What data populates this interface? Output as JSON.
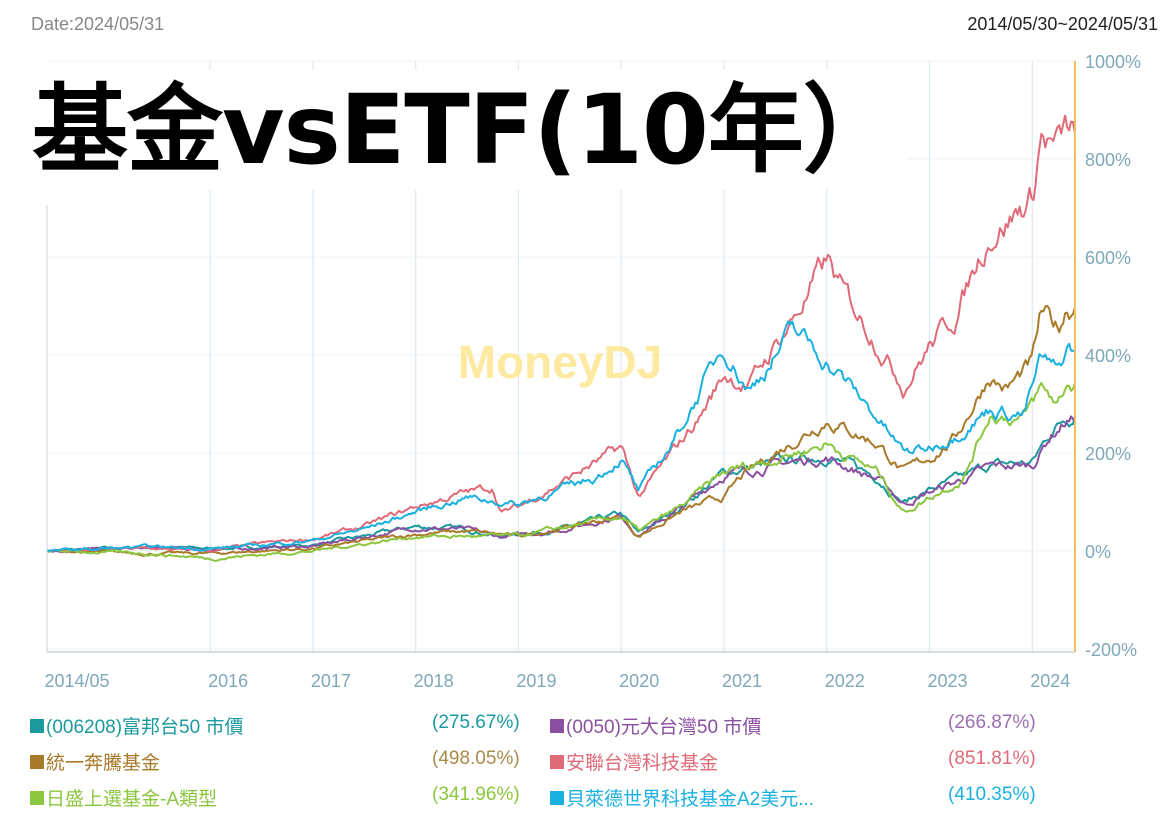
{
  "header": {
    "date": "Date:2024/05/31",
    "range": "2014/05/30~2024/05/31"
  },
  "title": "基金vsETF(10年）",
  "watermark": "MoneyDJ",
  "chart_data": {
    "type": "line",
    "title": "基金vsETF(10年）",
    "x_ticks": [
      "2014/05",
      "2016",
      "2017",
      "2018",
      "2019",
      "2020",
      "2021",
      "2022",
      "2023",
      "2024"
    ],
    "y_ticks": [
      "1000%",
      "800%",
      "600%",
      "400%",
      "200%",
      "0%",
      "-200%"
    ],
    "ylim": [
      -200,
      1000
    ],
    "xlim": [
      "2014/05/30",
      "2024/05/31"
    ],
    "y_axis_position": "right",
    "grid": true,
    "legend_position": "bottom",
    "series": [
      {
        "name": "(006208)富邦台50 市價",
        "return": "(275.67%)",
        "color": "#1a9a9f",
        "points": [
          [
            "2014/06",
            0
          ],
          [
            "2015/06",
            8
          ],
          [
            "2016/01",
            5
          ],
          [
            "2016/07",
            8
          ],
          [
            "2017/01",
            12
          ],
          [
            "2017/07",
            30
          ],
          [
            "2018/01",
            50
          ],
          [
            "2018/07",
            45
          ],
          [
            "2018/11",
            30
          ],
          [
            "2019/06",
            45
          ],
          [
            "2020/01",
            75
          ],
          [
            "2020/03",
            35
          ],
          [
            "2020/08",
            90
          ],
          [
            "2021/01",
            160
          ],
          [
            "2021/07",
            180
          ],
          [
            "2022/01",
            195
          ],
          [
            "2022/07",
            150
          ],
          [
            "2022/10",
            100
          ],
          [
            "2023/01",
            125
          ],
          [
            "2023/05",
            150
          ],
          [
            "2023/08",
            175
          ],
          [
            "2024/01",
            180
          ],
          [
            "2024/03",
            240
          ],
          [
            "2024/05",
            276
          ]
        ]
      },
      {
        "name": "(0050)元大台灣50 市價",
        "return": "(266.87%)",
        "color": "#8a4fa0",
        "points": [
          [
            "2014/06",
            0
          ],
          [
            "2015/06",
            6
          ],
          [
            "2016/01",
            3
          ],
          [
            "2016/07",
            6
          ],
          [
            "2017/01",
            10
          ],
          [
            "2017/07",
            28
          ],
          [
            "2018/01",
            48
          ],
          [
            "2018/07",
            43
          ],
          [
            "2018/11",
            28
          ],
          [
            "2019/06",
            43
          ],
          [
            "2020/01",
            72
          ],
          [
            "2020/03",
            33
          ],
          [
            "2020/08",
            87
          ],
          [
            "2021/01",
            156
          ],
          [
            "2021/07",
            176
          ],
          [
            "2022/01",
            190
          ],
          [
            "2022/07",
            146
          ],
          [
            "2022/10",
            96
          ],
          [
            "2023/01",
            120
          ],
          [
            "2023/05",
            146
          ],
          [
            "2023/08",
            170
          ],
          [
            "2024/01",
            175
          ],
          [
            "2024/03",
            233
          ],
          [
            "2024/05",
            267
          ]
        ]
      },
      {
        "name": "統一奔騰基金",
        "return": "(498.05%)",
        "color": "#a87a2a",
        "points": [
          [
            "2014/06",
            0
          ],
          [
            "2015/06",
            -5
          ],
          [
            "2016/01",
            -5
          ],
          [
            "2017/01",
            5
          ],
          [
            "2018/01",
            35
          ],
          [
            "2018/07",
            40
          ],
          [
            "2019/01",
            30
          ],
          [
            "2019/07",
            50
          ],
          [
            "2020/01",
            70
          ],
          [
            "2020/03",
            30
          ],
          [
            "2020/08",
            80
          ],
          [
            "2021/01",
            110
          ],
          [
            "2021/03",
            150
          ],
          [
            "2021/07",
            200
          ],
          [
            "2022/01",
            270
          ],
          [
            "2022/07",
            220
          ],
          [
            "2022/10",
            160
          ],
          [
            "2023/01",
            190
          ],
          [
            "2023/04",
            230
          ],
          [
            "2023/08",
            360
          ],
          [
            "2023/10",
            330
          ],
          [
            "2024/01",
            380
          ],
          [
            "2024/02",
            480
          ],
          [
            "2024/04",
            450
          ],
          [
            "2024/05",
            498
          ]
        ]
      },
      {
        "name": "安聯台灣科技基金",
        "return": "(851.81%)",
        "color": "#e06a78",
        "points": [
          [
            "2014/06",
            0
          ],
          [
            "2015/06",
            5
          ],
          [
            "2016/01",
            0
          ],
          [
            "2016/07",
            15
          ],
          [
            "2017/01",
            25
          ],
          [
            "2017/07",
            50
          ],
          [
            "2018/01",
            90
          ],
          [
            "2018/07",
            120
          ],
          [
            "2018/10",
            130
          ],
          [
            "2018/11",
            80
          ],
          [
            "2019/01",
            90
          ],
          [
            "2019/07",
            150
          ],
          [
            "2019/10",
            180
          ],
          [
            "2020/01",
            210
          ],
          [
            "2020/03",
            110
          ],
          [
            "2020/07",
            200
          ],
          [
            "2020/10",
            270
          ],
          [
            "2021/01",
            360
          ],
          [
            "2021/04",
            340
          ],
          [
            "2021/07",
            420
          ],
          [
            "2021/10",
            500
          ],
          [
            "2022/01",
            590
          ],
          [
            "2022/03",
            520
          ],
          [
            "2022/07",
            430
          ],
          [
            "2022/10",
            340
          ],
          [
            "2023/01",
            420
          ],
          [
            "2023/04",
            480
          ],
          [
            "2023/08",
            650
          ],
          [
            "2023/11",
            690
          ],
          [
            "2024/01",
            720
          ],
          [
            "2024/02",
            850
          ],
          [
            "2024/04",
            820
          ],
          [
            "2024/05",
            852
          ]
        ]
      },
      {
        "name": "日盛上選基金-A類型",
        "return": "(341.96%)",
        "color": "#8cc63f",
        "points": [
          [
            "2014/06",
            0
          ],
          [
            "2015/06",
            -5
          ],
          [
            "2016/01",
            -15
          ],
          [
            "2017/01",
            0
          ],
          [
            "2018/01",
            30
          ],
          [
            "2019/01",
            30
          ],
          [
            "2020/01",
            70
          ],
          [
            "2020/03",
            40
          ],
          [
            "2020/08",
            90
          ],
          [
            "2021/01",
            160
          ],
          [
            "2021/07",
            190
          ],
          [
            "2022/01",
            220
          ],
          [
            "2022/07",
            160
          ],
          [
            "2022/10",
            80
          ],
          [
            "2023/01",
            110
          ],
          [
            "2023/05",
            150
          ],
          [
            "2023/08",
            280
          ],
          [
            "2023/12",
            270
          ],
          [
            "2024/02",
            330
          ],
          [
            "2024/04",
            300
          ],
          [
            "2024/05",
            342
          ]
        ]
      },
      {
        "name": "貝萊德世界科技基金A2美元...",
        "return": "(410.35%)",
        "color": "#1ab0e0",
        "points": [
          [
            "2014/06",
            0
          ],
          [
            "2015/06",
            8
          ],
          [
            "2016/01",
            5
          ],
          [
            "2016/07",
            12
          ],
          [
            "2017/01",
            22
          ],
          [
            "2017/07",
            45
          ],
          [
            "2018/01",
            80
          ],
          [
            "2018/07",
            110
          ],
          [
            "2019/01",
            95
          ],
          [
            "2019/10",
            150
          ],
          [
            "2020/01",
            190
          ],
          [
            "2020/03",
            120
          ],
          [
            "2020/07",
            220
          ],
          [
            "2021/01",
            420
          ],
          [
            "2021/04",
            330
          ],
          [
            "2021/09",
            450
          ],
          [
            "2022/01",
            390
          ],
          [
            "2022/07",
            270
          ],
          [
            "2022/10",
            200
          ],
          [
            "2023/01",
            210
          ],
          [
            "2023/04",
            240
          ],
          [
            "2023/08",
            290
          ],
          [
            "2023/12",
            280
          ],
          [
            "2024/02",
            390
          ],
          [
            "2024/04",
            360
          ],
          [
            "2024/05",
            410
          ]
        ]
      }
    ]
  }
}
